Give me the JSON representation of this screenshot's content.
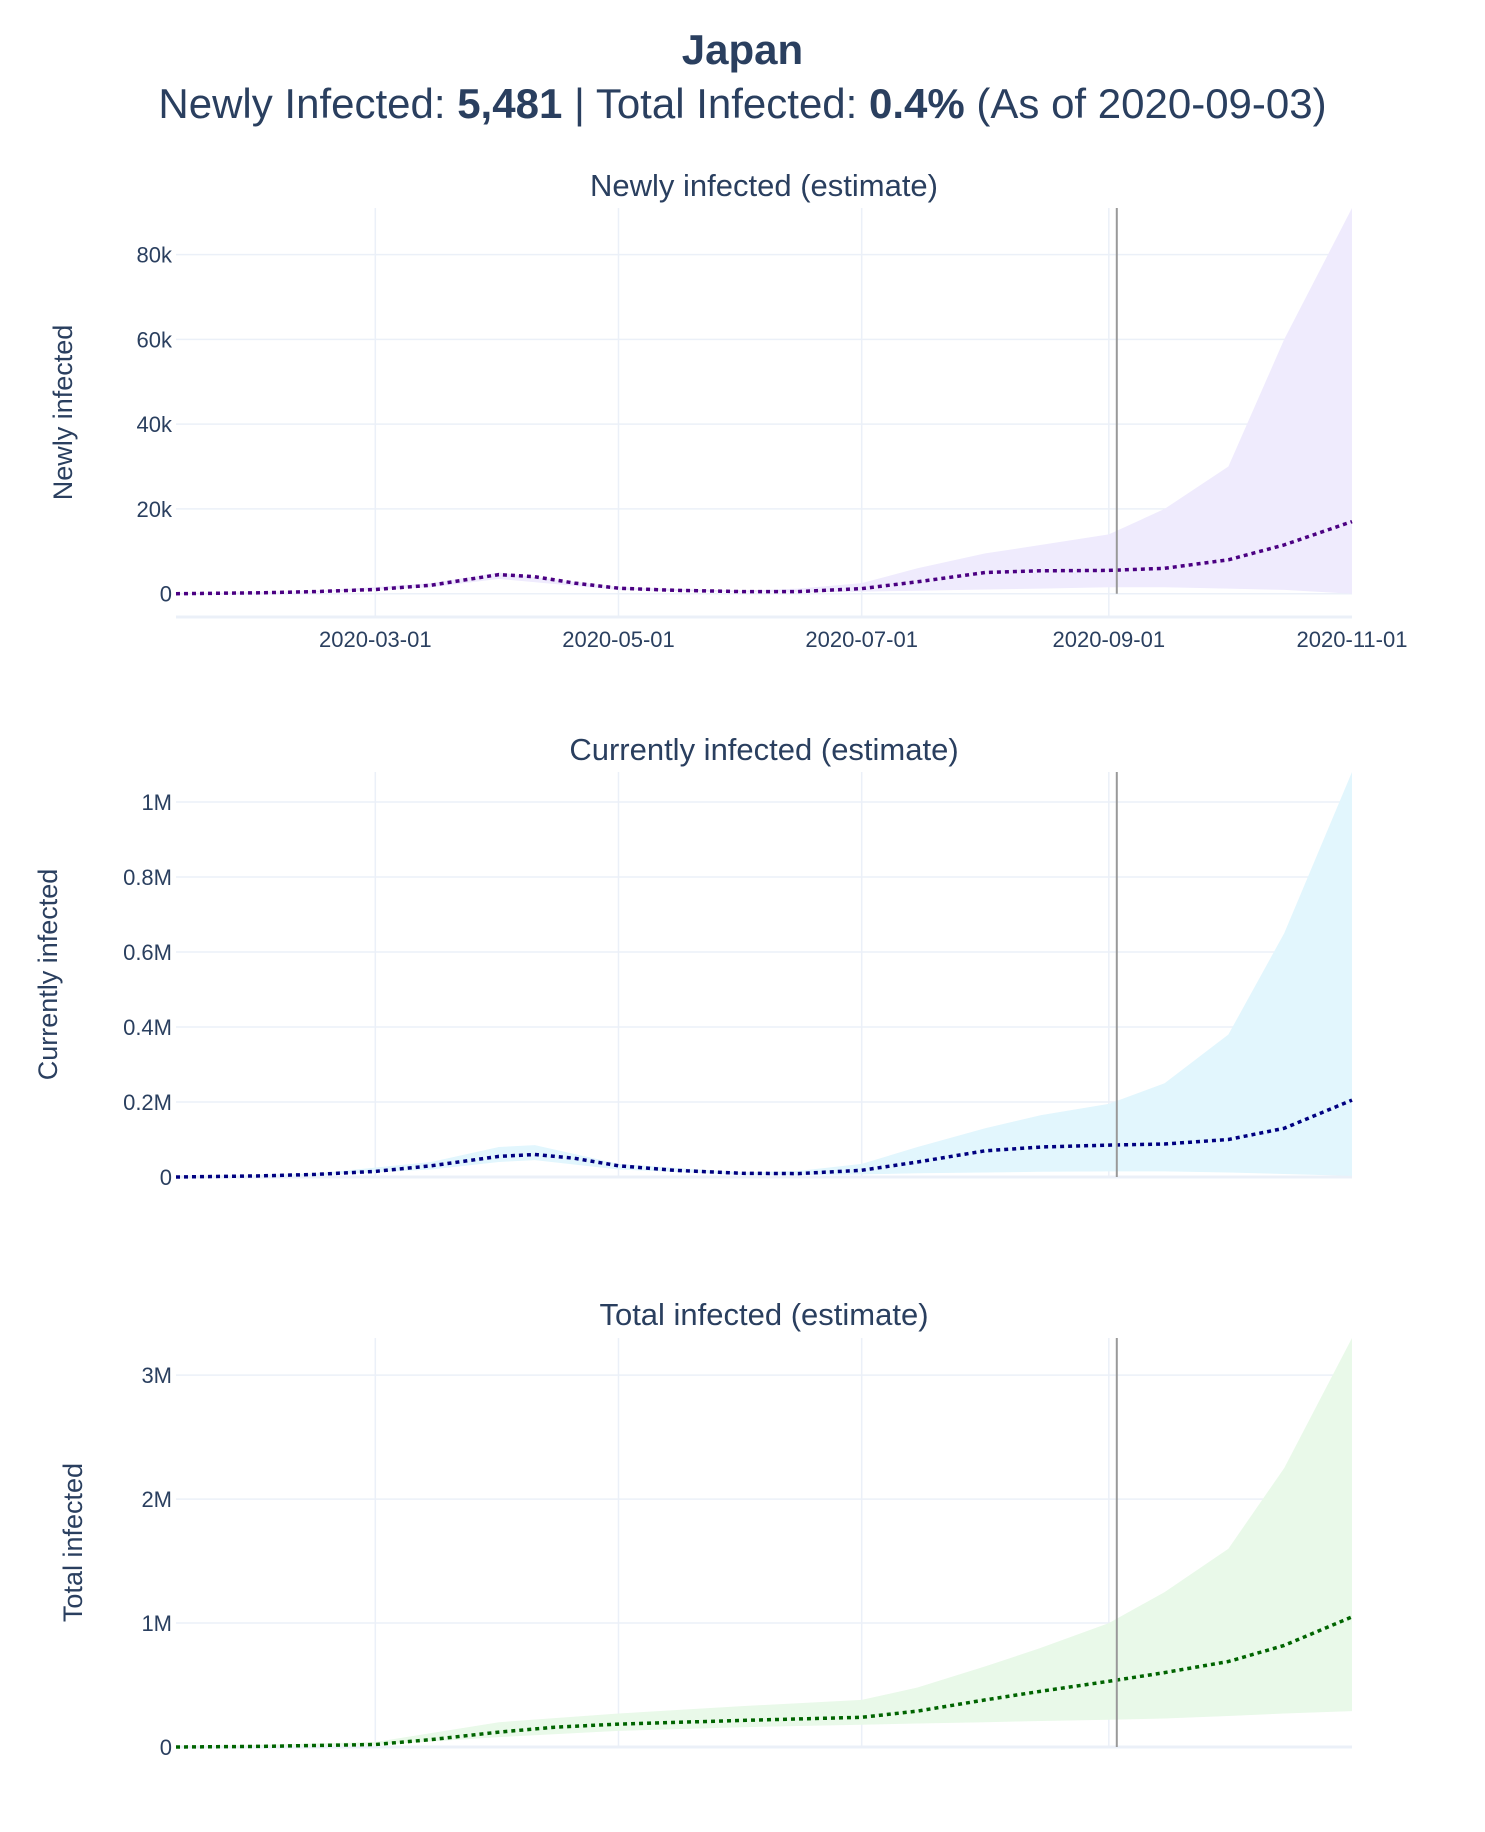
{
  "header": {
    "title": "Japan",
    "newly_label": "Newly Infected:",
    "newly_value": "5,481",
    "sep": "|",
    "total_label": "Total Infected:",
    "total_value": "0.4%",
    "asof": "(As of 2020-09-03)"
  },
  "colors": {
    "text": "#2a3f5f",
    "grid": "#ebf0f8",
    "vline": "#999999",
    "newly_line": "#4b0082",
    "newly_band": "#efebfd",
    "current_line": "#000080",
    "current_band": "#e2f6fd",
    "total_line": "#006400",
    "total_band": "#e9f9e9"
  },
  "chart_data": [
    {
      "type": "line",
      "title": "Newly infected (estimate)",
      "ylabel": "Newly infected",
      "xlabel": "",
      "xlim": [
        "2020-01-11",
        "2020-11-01"
      ],
      "ylim": [
        -5500,
        91000
      ],
      "x_ticks": [
        "2020-03-01",
        "2020-05-01",
        "2020-07-01",
        "2020-09-01",
        "2020-11-01"
      ],
      "x_tick_labels": [
        "2020-03-01",
        "2020-05-01",
        "2020-07-01",
        "2020-09-01",
        "2020-11-01"
      ],
      "show_x_tick_labels": true,
      "y_ticks": [
        0,
        20000,
        40000,
        60000,
        80000
      ],
      "y_tick_labels": [
        "0",
        "20k",
        "40k",
        "60k",
        "80k"
      ],
      "vline_date": "2020-09-03",
      "estimate": {
        "x": [
          "2020-01-11",
          "2020-02-01",
          "2020-02-15",
          "2020-03-01",
          "2020-03-15",
          "2020-04-01",
          "2020-04-10",
          "2020-04-20",
          "2020-05-01",
          "2020-05-15",
          "2020-06-01",
          "2020-06-15",
          "2020-07-01",
          "2020-07-15",
          "2020-08-01",
          "2020-08-15",
          "2020-09-01",
          "2020-09-15",
          "2020-10-01",
          "2020-10-15",
          "2020-11-01"
        ],
        "y": [
          0,
          200,
          500,
          1000,
          2000,
          4500,
          4000,
          2500,
          1300,
          800,
          500,
          500,
          1200,
          2800,
          5000,
          5400,
          5500,
          6000,
          8000,
          11500,
          17000
        ]
      },
      "band": {
        "x": [
          "2020-01-11",
          "2020-02-15",
          "2020-03-15",
          "2020-04-01",
          "2020-05-01",
          "2020-06-01",
          "2020-06-15",
          "2020-07-01",
          "2020-07-15",
          "2020-08-01",
          "2020-08-15",
          "2020-09-01",
          "2020-09-15",
          "2020-10-01",
          "2020-10-15",
          "2020-11-01"
        ],
        "upper": [
          0,
          600,
          2500,
          5000,
          1500,
          700,
          1200,
          2500,
          6000,
          9500,
          11500,
          14000,
          20000,
          30000,
          60000,
          91000
        ],
        "lower": [
          0,
          300,
          1500,
          3500,
          900,
          300,
          300,
          500,
          700,
          1000,
          1200,
          1500,
          1500,
          1200,
          900,
          0
        ]
      }
    },
    {
      "type": "line",
      "title": "Currently infected (estimate)",
      "ylabel": "Currently infected",
      "xlabel": "",
      "xlim": [
        "2020-01-11",
        "2020-11-01"
      ],
      "ylim": [
        0,
        1080000
      ],
      "x_ticks": [
        "2020-03-01",
        "2020-05-01",
        "2020-07-01",
        "2020-09-01",
        "2020-11-01"
      ],
      "x_tick_labels": [],
      "show_x_tick_labels": false,
      "y_ticks": [
        0,
        200000,
        400000,
        600000,
        800000,
        1000000
      ],
      "y_tick_labels": [
        "0",
        "0.2M",
        "0.4M",
        "0.6M",
        "0.8M",
        "1M"
      ],
      "vline_date": "2020-09-03",
      "estimate": {
        "x": [
          "2020-01-11",
          "2020-02-01",
          "2020-02-15",
          "2020-03-01",
          "2020-03-15",
          "2020-04-01",
          "2020-04-10",
          "2020-04-20",
          "2020-05-01",
          "2020-05-15",
          "2020-06-01",
          "2020-06-15",
          "2020-07-01",
          "2020-07-15",
          "2020-08-01",
          "2020-08-15",
          "2020-09-01",
          "2020-09-15",
          "2020-10-01",
          "2020-10-15",
          "2020-11-01"
        ],
        "y": [
          0,
          3000,
          7000,
          15000,
          30000,
          55000,
          60000,
          50000,
          30000,
          18000,
          10000,
          9000,
          18000,
          40000,
          70000,
          80000,
          85000,
          88000,
          100000,
          130000,
          205000
        ]
      },
      "band": {
        "x": [
          "2020-01-11",
          "2020-02-15",
          "2020-03-15",
          "2020-04-01",
          "2020-04-10",
          "2020-05-01",
          "2020-06-01",
          "2020-06-15",
          "2020-07-01",
          "2020-07-15",
          "2020-08-01",
          "2020-08-15",
          "2020-09-01",
          "2020-09-15",
          "2020-10-01",
          "2020-10-15",
          "2020-11-01"
        ],
        "upper": [
          0,
          9000,
          40000,
          80000,
          85000,
          35000,
          12000,
          16000,
          35000,
          80000,
          130000,
          165000,
          195000,
          250000,
          380000,
          650000,
          1080000
        ],
        "lower": [
          0,
          4000,
          20000,
          40000,
          45000,
          20000,
          6000,
          5000,
          7000,
          10000,
          12000,
          14000,
          15000,
          15000,
          12000,
          8000,
          3000
        ]
      }
    },
    {
      "type": "line",
      "title": "Total infected (estimate)",
      "ylabel": "Total infected",
      "xlabel": "",
      "xlim": [
        "2020-01-11",
        "2020-11-01"
      ],
      "ylim": [
        0,
        3300000
      ],
      "x_ticks": [
        "2020-03-01",
        "2020-05-01",
        "2020-07-01",
        "2020-09-01",
        "2020-11-01"
      ],
      "x_tick_labels": [],
      "show_x_tick_labels": false,
      "y_ticks": [
        0,
        1000000,
        2000000,
        3000000
      ],
      "y_tick_labels": [
        "0",
        "1M",
        "2M",
        "3M"
      ],
      "vline_date": "2020-09-03",
      "estimate": {
        "x": [
          "2020-01-11",
          "2020-02-01",
          "2020-03-01",
          "2020-03-15",
          "2020-04-01",
          "2020-04-15",
          "2020-05-01",
          "2020-06-01",
          "2020-07-01",
          "2020-07-15",
          "2020-08-01",
          "2020-08-15",
          "2020-09-01",
          "2020-09-15",
          "2020-10-01",
          "2020-10-15",
          "2020-11-01"
        ],
        "y": [
          0,
          5000,
          20000,
          60000,
          120000,
          160000,
          185000,
          215000,
          240000,
          290000,
          380000,
          450000,
          530000,
          600000,
          690000,
          820000,
          1050000
        ]
      },
      "band": {
        "x": [
          "2020-01-11",
          "2020-03-01",
          "2020-04-01",
          "2020-05-01",
          "2020-06-01",
          "2020-07-01",
          "2020-07-15",
          "2020-08-01",
          "2020-08-15",
          "2020-09-01",
          "2020-09-15",
          "2020-10-01",
          "2020-10-15",
          "2020-11-01"
        ],
        "upper": [
          0,
          40000,
          200000,
          270000,
          330000,
          380000,
          480000,
          650000,
          800000,
          1000000,
          1250000,
          1600000,
          2250000,
          3300000
        ],
        "lower": [
          0,
          15000,
          80000,
          130000,
          160000,
          180000,
          190000,
          200000,
          210000,
          220000,
          230000,
          250000,
          270000,
          290000
        ]
      }
    }
  ]
}
